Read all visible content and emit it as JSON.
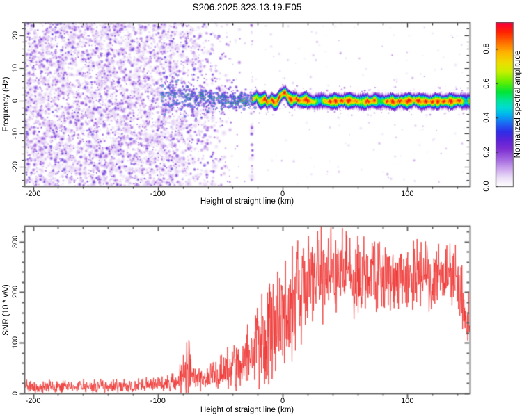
{
  "title": "S206.2025.323.13.19.E05",
  "colors": {
    "background": "#ffffff",
    "frame": "#5f5f5f",
    "ticks": "#2a2a2a",
    "text": "#000000",
    "snr_line": "#ee3533"
  },
  "chart_data": [
    {
      "id": "spectrogram",
      "type": "heatmap",
      "title": "S206.2025.323.13.19.E05",
      "xlabel": "Height of straight line (km)",
      "ylabel": "Frequency (Hz)",
      "xlim": [
        -207,
        150
      ],
      "ylim": [
        -26,
        24
      ],
      "x_ticks": {
        "values": [
          -200,
          -100,
          0,
          100
        ],
        "labels": [
          "-200",
          "-100",
          "0",
          "100"
        ],
        "minor_step": 20
      },
      "y_ticks": {
        "values": [
          -20,
          -10,
          0,
          10,
          20
        ],
        "labels": [
          "-20",
          "-10",
          "0",
          "10",
          "20"
        ],
        "minor_step": 2
      },
      "colorbar": {
        "label": "Normalized spectral amplitude",
        "tick_values": [
          0,
          0.2,
          0.4,
          0.6,
          0.8
        ],
        "tick_labels": [
          "0.0",
          "0.2",
          "0.4",
          "0.6",
          "0.8"
        ],
        "range": [
          0,
          1
        ]
      },
      "colormap_stops": [
        [
          0.0,
          "#ffffff"
        ],
        [
          0.05,
          "#ece0f8"
        ],
        [
          0.1,
          "#cfa9ee"
        ],
        [
          0.16,
          "#a366e0"
        ],
        [
          0.22,
          "#7d2ed2"
        ],
        [
          0.27,
          "#5b22d8"
        ],
        [
          0.32,
          "#2e2ee8"
        ],
        [
          0.37,
          "#1b6bf2"
        ],
        [
          0.42,
          "#00b4f0"
        ],
        [
          0.46,
          "#00dcd2"
        ],
        [
          0.5,
          "#00e49b"
        ],
        [
          0.55,
          "#00e436"
        ],
        [
          0.61,
          "#66ee00"
        ],
        [
          0.67,
          "#c8f000"
        ],
        [
          0.72,
          "#eedd00"
        ],
        [
          0.78,
          "#ffb400"
        ],
        [
          0.84,
          "#ff6c00"
        ],
        [
          0.9,
          "#ff2300"
        ],
        [
          0.95,
          "#fa0038"
        ],
        [
          1.0,
          "#e6006e"
        ]
      ],
      "noise_region": {
        "x_range": [
          -207,
          -24
        ],
        "solid_until": -97,
        "fade_end": -25,
        "amplitude_range": [
          0.04,
          0.35
        ]
      },
      "band": {
        "x_range": [
          -97,
          -22
        ],
        "center_freq_start": 1.6,
        "center_freq_end": -0.2,
        "sigma_start": 5.5,
        "sigma_end": 2.0,
        "amplitude_range": [
          0.22,
          0.8
        ],
        "strong_spots": [
          [
            -35,
            0.3,
            0.72
          ],
          [
            -33.5,
            -0.2,
            0.85
          ],
          [
            -32,
            0.1,
            0.95
          ],
          [
            -30.5,
            0.4,
            0.7
          ],
          [
            -52,
            0.8,
            0.65
          ],
          [
            -64,
            1.5,
            0.6
          ],
          [
            -76,
            2.0,
            0.62
          ],
          [
            -86,
            2.4,
            0.6
          ]
        ]
      },
      "ridge": {
        "x_range": [
          -24,
          150
        ],
        "sigma_hz": 1.15,
        "center_points": [
          [
            -24,
            0.6
          ],
          [
            -21,
            1.4
          ],
          [
            -18,
            -0.2
          ],
          [
            -15,
            0.9
          ],
          [
            -12,
            -0.4
          ],
          [
            -9,
            0.3
          ],
          [
            -6,
            -0.5
          ],
          [
            -3,
            1.2
          ],
          [
            0,
            2.3
          ],
          [
            2,
            2.6
          ],
          [
            4,
            1.4
          ],
          [
            7,
            0.2
          ],
          [
            10,
            0.8
          ],
          [
            14,
            0.1
          ],
          [
            18,
            0.5
          ],
          [
            24,
            -0.2
          ],
          [
            30,
            0.3
          ],
          [
            38,
            -0.1
          ],
          [
            50,
            0.3
          ],
          [
            62,
            -0.2
          ],
          [
            75,
            0.2
          ],
          [
            90,
            -0.1
          ],
          [
            105,
            0.2
          ],
          [
            120,
            -0.1
          ],
          [
            135,
            0.1
          ],
          [
            150,
            0.0
          ]
        ],
        "amp_dips": [
          [
            -21,
            0.72,
            2.5
          ],
          [
            29,
            0.55,
            4
          ],
          [
            62,
            0.8,
            3
          ],
          [
            78,
            0.6,
            3
          ],
          [
            147,
            0.55,
            3
          ]
        ],
        "core_amplitude": [
          0.78,
          0.93
        ]
      }
    },
    {
      "id": "snr",
      "type": "line",
      "xlabel": "Height of straight line (km)",
      "ylabel": "SNR (10 * v/v)",
      "xlim": [
        -207,
        150
      ],
      "ylim": [
        0,
        331
      ],
      "x_ticks": {
        "values": [
          -200,
          -100,
          0,
          100
        ],
        "labels": [
          "-200",
          "-100",
          "0",
          "100"
        ],
        "minor_step": 20
      },
      "y_ticks": {
        "values": [
          0,
          100,
          200,
          300
        ],
        "labels": [
          "0",
          "100",
          "200",
          "300"
        ],
        "minor_step": 20
      },
      "line_color": "#ee3533",
      "envelope_points": [
        [
          -207,
          13,
          12
        ],
        [
          -190,
          13,
          12
        ],
        [
          -170,
          14,
          12
        ],
        [
          -150,
          14,
          13
        ],
        [
          -130,
          15,
          13
        ],
        [
          -110,
          16,
          13
        ],
        [
          -100,
          17,
          14
        ],
        [
          -92,
          18,
          15
        ],
        [
          -86,
          22,
          18
        ],
        [
          -80,
          38,
          38
        ],
        [
          -76,
          52,
          58
        ],
        [
          -73,
          34,
          30
        ],
        [
          -68,
          28,
          22
        ],
        [
          -62,
          30,
          24
        ],
        [
          -56,
          33,
          26
        ],
        [
          -50,
          40,
          34
        ],
        [
          -46,
          48,
          44
        ],
        [
          -42,
          42,
          36
        ],
        [
          -38,
          54,
          48
        ],
        [
          -34,
          62,
          56
        ],
        [
          -30,
          60,
          55
        ],
        [
          -27,
          78,
          70
        ],
        [
          -24,
          66,
          62
        ],
        [
          -21,
          88,
          80
        ],
        [
          -18,
          96,
          88
        ],
        [
          -15,
          106,
          96
        ],
        [
          -12,
          112,
          100
        ],
        [
          -9,
          104,
          96
        ],
        [
          -6,
          118,
          104
        ],
        [
          -3,
          128,
          108
        ],
        [
          0,
          142,
          112
        ],
        [
          3,
          152,
          112
        ],
        [
          6,
          164,
          108
        ],
        [
          9,
          176,
          104
        ],
        [
          12,
          188,
          104
        ],
        [
          15,
          200,
          106
        ],
        [
          18,
          212,
          108
        ],
        [
          22,
          222,
          108
        ],
        [
          26,
          230,
          104
        ],
        [
          30,
          238,
          100
        ],
        [
          34,
          232,
          96
        ],
        [
          38,
          240,
          96
        ],
        [
          44,
          234,
          88
        ],
        [
          50,
          230,
          80
        ],
        [
          56,
          226,
          74
        ],
        [
          62,
          228,
          72
        ],
        [
          68,
          232,
          72
        ],
        [
          74,
          228,
          70
        ],
        [
          80,
          234,
          70
        ],
        [
          86,
          228,
          66
        ],
        [
          92,
          232,
          66
        ],
        [
          98,
          236,
          64
        ],
        [
          104,
          230,
          62
        ],
        [
          110,
          234,
          64
        ],
        [
          116,
          228,
          62
        ],
        [
          122,
          234,
          64
        ],
        [
          128,
          226,
          62
        ],
        [
          134,
          230,
          60
        ],
        [
          139,
          226,
          62
        ],
        [
          143,
          204,
          64
        ],
        [
          146,
          150,
          45
        ],
        [
          148,
          132,
          40
        ],
        [
          150,
          170,
          70
        ]
      ]
    }
  ]
}
